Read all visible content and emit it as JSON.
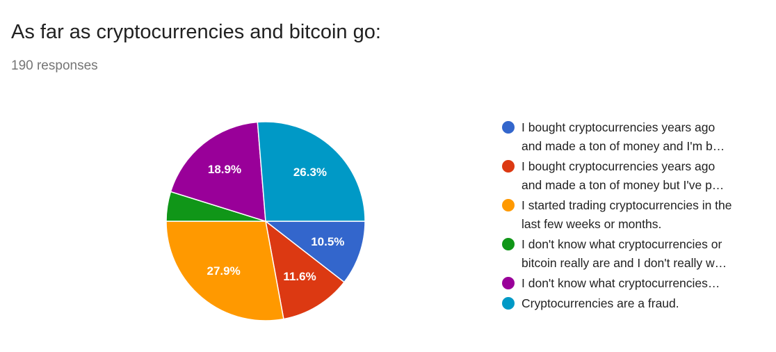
{
  "chart_data": {
    "type": "pie",
    "title": "As far as cryptocurrencies and bitcoin go:",
    "subtitle": "190 responses",
    "categories": [
      "I bought cryptocurrencies years ago and made a ton of money and I'm b…",
      "I bought cryptocurrencies years ago and made a ton of money but I've p…",
      "I started trading cryptocurrencies in the last few weeks or months.",
      "I don't know what cryptocurrencies or bitcoin really are and I don't really w…",
      "I don't know what cryptocurrencies…",
      "Cryptocurrencies are a fraud."
    ],
    "values": [
      10.5,
      11.6,
      27.9,
      4.8,
      18.9,
      26.3
    ],
    "value_labels": [
      "10.5%",
      "11.6%",
      "27.9%",
      null,
      "18.9%",
      "26.3%"
    ],
    "colors": [
      "#3366cc",
      "#dc3912",
      "#ff9900",
      "#109618",
      "#990099",
      "#0099c6"
    ],
    "legend": "right"
  }
}
